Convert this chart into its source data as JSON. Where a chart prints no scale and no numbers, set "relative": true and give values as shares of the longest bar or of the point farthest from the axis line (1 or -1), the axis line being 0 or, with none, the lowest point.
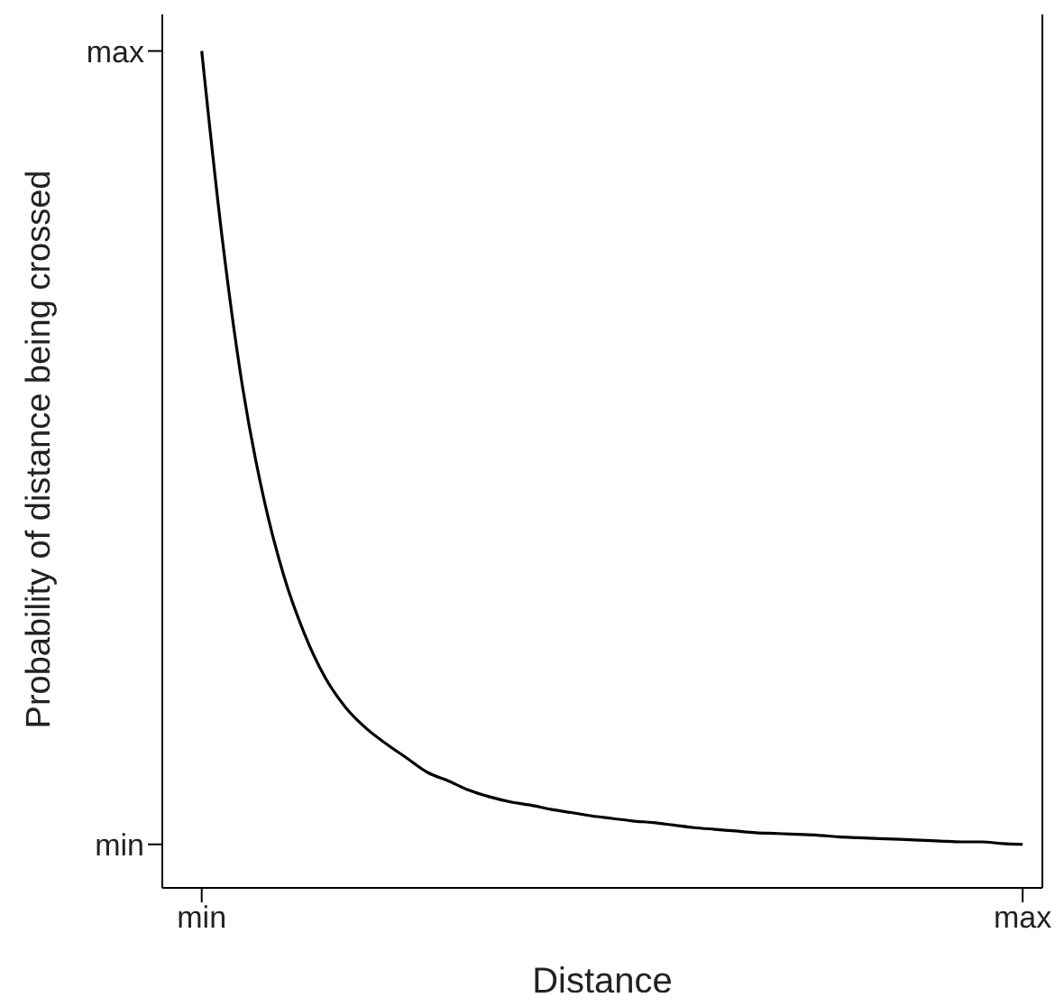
{
  "chart_data": {
    "type": "line",
    "relative": true,
    "xlabel": "Distance",
    "ylabel": "Probability of distance being crossed",
    "categories": [
      "min",
      null,
      null,
      null,
      null,
      null,
      null,
      null,
      null,
      null,
      null,
      null,
      null,
      null,
      null,
      null,
      null,
      null,
      null,
      null,
      null,
      null,
      null,
      null,
      null,
      null,
      null,
      null,
      null,
      null,
      null,
      null,
      null,
      null,
      null,
      null,
      null,
      null,
      null,
      null,
      "max"
    ],
    "series": [
      {
        "color": "#000000",
        "values": [
          1,
          0.776,
          0.597,
          0.468,
          0.373,
          0.304,
          0.252,
          0.216,
          0.191,
          0.172,
          0.155,
          0.138,
          0.128,
          0.117,
          0.109,
          0.103,
          0.099,
          0.094,
          0.09,
          0.086,
          0.083,
          0.08,
          0.078,
          0.075,
          0.072,
          0.07,
          0.068,
          0.066,
          0.065,
          0.064,
          0.063,
          0.061,
          0.06,
          0.059,
          0.058,
          0.057,
          0.056,
          0.055,
          0.055,
          0.053,
          0.052
        ]
      }
    ],
    "annotations": [
      "max",
      "min"
    ],
    "grid": false,
    "legend": false,
    "marker": "none",
    "line_style": "solid"
  }
}
